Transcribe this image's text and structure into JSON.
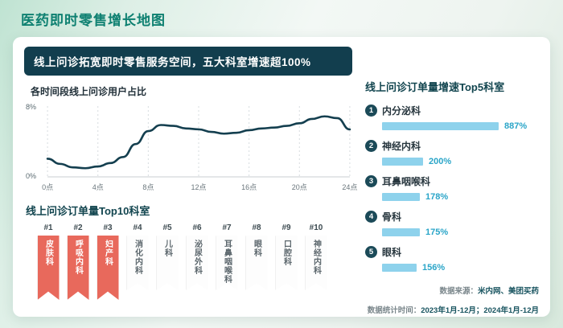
{
  "page": {
    "title": "医药即时零售增长地图"
  },
  "headline": "线上问诊拓宽即时零售服务空间，五大科室增速超100%",
  "source": {
    "line1_label": "数据来源：",
    "line1_value": "米内网、美团买药",
    "line2_label": "数据统计时间：",
    "line2_value": "2023年1月-12月；2024年1月-12月"
  },
  "colors": {
    "accent_teal": "#0e8071",
    "banner_bg": "#123e4e",
    "line": "#143f4f",
    "ribbon_hl": "#e8695c",
    "bar": "#8ed2ec",
    "pct": "#2aa5c8",
    "heading": "#12454f"
  },
  "chart_data": [
    {
      "id": "time_line",
      "type": "line",
      "title": "各时间段线上问诊用户占比",
      "xlabel": "",
      "ylabel": "",
      "ylim": [
        0,
        8
      ],
      "y_tick_labels": [
        "0%",
        "8%"
      ],
      "x_tick_labels": [
        "0点",
        "4点",
        "8点",
        "12点",
        "16点",
        "20点",
        "24点"
      ],
      "x_tick_hours": [
        0,
        4,
        8,
        12,
        16,
        20,
        24
      ],
      "x": [
        0,
        1,
        2,
        3,
        4,
        5,
        6,
        7,
        8,
        9,
        10,
        11,
        12,
        13,
        14,
        15,
        16,
        17,
        18,
        19,
        20,
        21,
        22,
        23,
        24
      ],
      "values": [
        2.1,
        1.5,
        1.1,
        1.0,
        1.2,
        1.6,
        2.3,
        3.8,
        5.3,
        6.0,
        5.9,
        5.6,
        5.5,
        5.2,
        5.0,
        5.1,
        5.4,
        5.6,
        5.7,
        5.9,
        6.2,
        6.7,
        7.0,
        6.8,
        5.5
      ],
      "grid": "vertical-dashed",
      "legend": "none"
    },
    {
      "id": "top5_growth",
      "type": "bar",
      "title": "线上问诊订单量增速Top5科室",
      "ranks": [
        "1",
        "2",
        "3",
        "4",
        "5"
      ],
      "categories": [
        "内分泌科",
        "神经内科",
        "耳鼻咽喉科",
        "骨科",
        "眼科"
      ],
      "values": [
        887,
        200,
        178,
        175,
        156
      ],
      "value_labels": [
        "887%",
        "200%",
        "178%",
        "175%",
        "156%"
      ],
      "legend": "none"
    },
    {
      "id": "top10_volume",
      "type": "table",
      "title": "线上问诊订单量Top10科室",
      "highlight_count": 3,
      "rows": [
        {
          "rank": "#1",
          "name": "皮肤科"
        },
        {
          "rank": "#2",
          "name": "呼吸内科"
        },
        {
          "rank": "#3",
          "name": "妇产科"
        },
        {
          "rank": "#4",
          "name": "消化内科"
        },
        {
          "rank": "#5",
          "name": "儿科"
        },
        {
          "rank": "#6",
          "name": "泌尿外科"
        },
        {
          "rank": "#7",
          "name": "耳鼻咽喉科"
        },
        {
          "rank": "#8",
          "name": "眼科"
        },
        {
          "rank": "#9",
          "name": "口腔科"
        },
        {
          "rank": "#10",
          "name": "神经内科"
        }
      ]
    }
  ]
}
